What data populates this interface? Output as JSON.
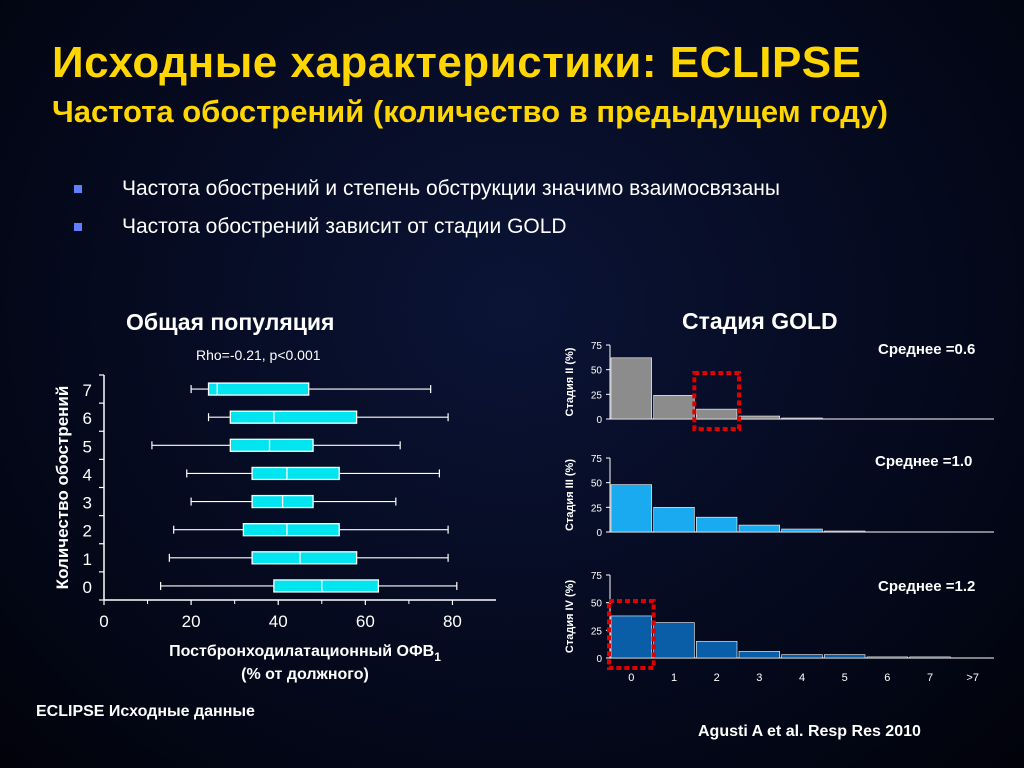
{
  "title": "Исходные характеристики: ECLIPSE",
  "subtitle": "Частота обострений (количество в предыдущем году)",
  "bullets": [
    "Частота обострений и степень обструкции значимо взаимосвязаны",
    "Частота обострений зависит от стадии GOLD"
  ],
  "left_panel": {
    "title": "Общая популяция",
    "stat": "Rho=-0.21, p<0.001",
    "xlabel_line1": "Постбронходилатационный ОФВ",
    "xlabel_sub": "1",
    "xlabel_line2": "(% от должного)",
    "footnote": "ECLIPSE Исходные данные"
  },
  "right_panel": {
    "title": "Стадия GOLD",
    "xlabel": "Количество обострений",
    "citation": "Agusti A et al. Resp Res 2010"
  },
  "colors": {
    "title": "#ffd600",
    "box_fill": "#00e5f0",
    "stage2": "#8c8c8c",
    "stage3": "#1aaaf0",
    "stage4": "#0a5ea8",
    "highlight": "#e00000"
  },
  "chart_data": [
    {
      "type": "boxplot",
      "orientation": "horizontal",
      "title": "Общая популяция",
      "xlabel": "Постбронходилатационный ОФВ1 (% от должного)",
      "ylabel": "Количество обострений",
      "xlim": [
        0,
        90
      ],
      "xticks": [
        0,
        20,
        40,
        60,
        80
      ],
      "categories": [
        "0",
        "1",
        "2",
        "3",
        "4",
        "5",
        "6",
        "7"
      ],
      "boxes": [
        {
          "category": "0",
          "whisker_low": 13,
          "q1": 39,
          "median": 50,
          "q3": 63,
          "whisker_high": 81
        },
        {
          "category": "1",
          "whisker_low": 15,
          "q1": 34,
          "median": 45,
          "q3": 58,
          "whisker_high": 79
        },
        {
          "category": "2",
          "whisker_low": 16,
          "q1": 32,
          "median": 42,
          "q3": 54,
          "whisker_high": 79
        },
        {
          "category": "3",
          "whisker_low": 20,
          "q1": 34,
          "median": 41,
          "q3": 48,
          "whisker_high": 67
        },
        {
          "category": "4",
          "whisker_low": 19,
          "q1": 34,
          "median": 42,
          "q3": 54,
          "whisker_high": 77
        },
        {
          "category": "5",
          "whisker_low": 11,
          "q1": 29,
          "median": 38,
          "q3": 48,
          "whisker_high": 68
        },
        {
          "category": "6",
          "whisker_low": 24,
          "q1": 29,
          "median": 39,
          "q3": 58,
          "whisker_high": 79
        },
        {
          "category": "7",
          "whisker_low": 20,
          "q1": 24,
          "median": 26,
          "q3": 47,
          "whisker_high": 75
        }
      ]
    },
    {
      "type": "bar",
      "title": "Стадия GOLD",
      "xlabel": "Количество обострений",
      "categories": [
        "0",
        "1",
        "2",
        "3",
        "4",
        "5",
        "6",
        "7",
        ">7"
      ],
      "ylim": [
        0,
        75
      ],
      "yticks": [
        0,
        25,
        50,
        75
      ],
      "panels": [
        {
          "ylabel": "Стадия II (%)",
          "mean_label": "Среднее =0.6",
          "values": [
            62,
            24,
            10,
            3,
            1,
            0,
            0,
            0,
            0
          ],
          "highlight_category": "2"
        },
        {
          "ylabel": "Стадия III (%)",
          "mean_label": "Среднее =1.0",
          "values": [
            48,
            25,
            15,
            7,
            3,
            1,
            0,
            0,
            0
          ]
        },
        {
          "ylabel": "Стадия IV (%)",
          "mean_label": "Среднее  =1.2",
          "values": [
            38,
            32,
            15,
            6,
            3,
            3,
            1,
            1,
            0
          ],
          "highlight_category": "0"
        }
      ]
    }
  ]
}
